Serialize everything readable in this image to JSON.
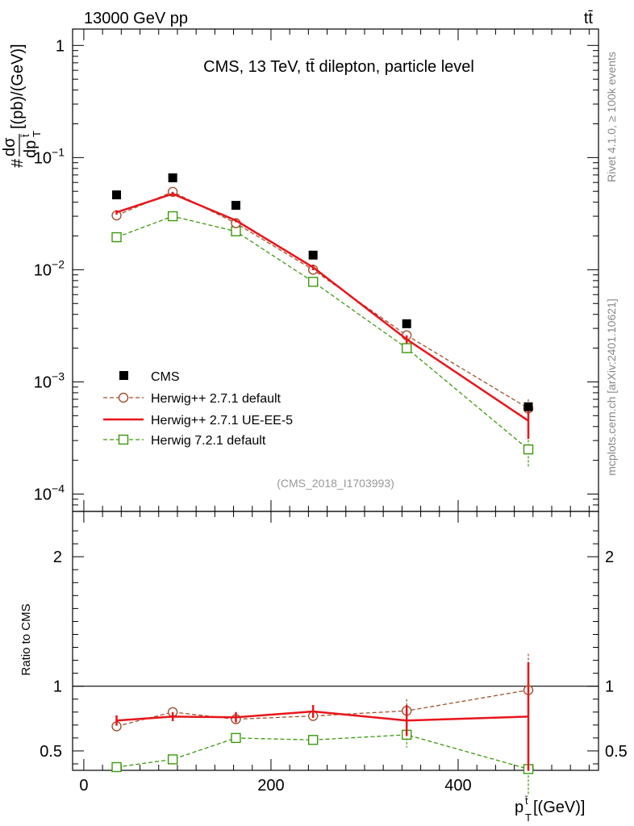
{
  "header": {
    "energy_label": "13000 GeV pp",
    "process_label": "tt̄"
  },
  "side_labels": {
    "rivet": "Rivet 4.1.0, ≥ 100k events",
    "mcplots": "mcplots.cern.ch [arXiv:2401.10621]"
  },
  "chart_data": [
    {
      "type": "line",
      "panel": "main",
      "title": "CMS, 13 TeV, tt̄ dilepton, particle level",
      "analysis_id": "(CMS_2018_I1703993)",
      "ylabel": "# dσ/dp_T^t̄ [(pb)/(GeV)]",
      "ylabel_parts": {
        "hash": "#",
        "numerator": "dσ",
        "denominator": "dp",
        "denominator_sup": "t̄",
        "denominator_sub": "T",
        "units": "[(pb)/(GeV)]"
      },
      "yscale": "log",
      "ylim": [
        7e-05,
        1.4
      ],
      "xlim": [
        -12,
        550
      ],
      "y_ticks": [
        {
          "value": 1,
          "label": "1"
        },
        {
          "value": 0.1,
          "label": "10",
          "exp": "−1"
        },
        {
          "value": 0.01,
          "label": "10",
          "exp": "−2"
        },
        {
          "value": 0.001,
          "label": "10",
          "exp": "−3"
        },
        {
          "value": 0.0001,
          "label": "10",
          "exp": "−4"
        }
      ],
      "x": [
        35,
        95,
        162.5,
        245,
        345,
        475
      ],
      "series": [
        {
          "name": "CMS",
          "style": "data",
          "color": "#000000",
          "values": [
            0.0465,
            0.066,
            0.0375,
            0.0135,
            0.0033,
            0.0006
          ]
        },
        {
          "name": "Herwig++ 2.7.1 default",
          "style": "circle-dashed",
          "color": "#a0522d",
          "values": [
            0.0305,
            0.0495,
            0.026,
            0.01,
            0.0026,
            0.00058
          ],
          "errors": [
            0.001,
            0.0015,
            0.0008,
            0.0004,
            0.00015,
            0.00012
          ]
        },
        {
          "name": "Herwig++ 2.7.1 UE-EE-5",
          "style": "solid",
          "color": "#e8151b",
          "values": [
            0.0325,
            0.0475,
            0.0275,
            0.0105,
            0.0024,
            0.00045
          ],
          "errors": [
            0.0015,
            0.002,
            0.001,
            0.0006,
            0.0002,
            0.00014
          ]
        },
        {
          "name": "Herwig 7.2.1 default",
          "style": "square-dashed",
          "color": "#3a9a0a",
          "values": [
            0.0195,
            0.03,
            0.022,
            0.0078,
            0.002,
            0.00025
          ],
          "errors": [
            0.0008,
            0.001,
            0.001,
            0.0004,
            0.0002,
            8e-05
          ]
        }
      ]
    },
    {
      "type": "line",
      "panel": "ratio",
      "ylabel": "Ratio to CMS",
      "xlabel": "p_T^t̄ [(GeV)]",
      "xlabel_parts": {
        "base": "p",
        "sup": "t̄",
        "sub": "T",
        "units": "[(GeV)]"
      },
      "ylim": [
        0.35,
        2.35
      ],
      "xlim": [
        -12,
        550
      ],
      "y_ticks": [
        0.5,
        1,
        2
      ],
      "x_ticks": [
        0,
        200,
        400
      ],
      "reference_line": 1,
      "x": [
        35,
        95,
        162.5,
        245,
        345,
        475
      ],
      "series": [
        {
          "name": "Herwig++ 2.7.1 default",
          "style": "circle-dashed",
          "color": "#a0522d",
          "values": [
            0.69,
            0.8,
            0.745,
            0.77,
            0.81,
            0.97
          ],
          "errors": [
            0.03,
            0.025,
            0.025,
            0.03,
            0.09,
            0.28
          ]
        },
        {
          "name": "Herwig++ 2.7.1 UE-EE-5",
          "style": "solid",
          "color": "#e8151b",
          "values": [
            0.735,
            0.765,
            0.76,
            0.805,
            0.735,
            0.765
          ],
          "errors": [
            0.04,
            0.035,
            0.04,
            0.05,
            0.12,
            0.42
          ]
        },
        {
          "name": "Herwig 7.2.1 default",
          "style": "square-dashed",
          "color": "#3a9a0a",
          "values": [
            0.375,
            0.435,
            0.6,
            0.585,
            0.625,
            0.36
          ],
          "errors": [
            0.015,
            0.02,
            0.025,
            0.03,
            0.1,
            0.2
          ]
        }
      ]
    }
  ]
}
